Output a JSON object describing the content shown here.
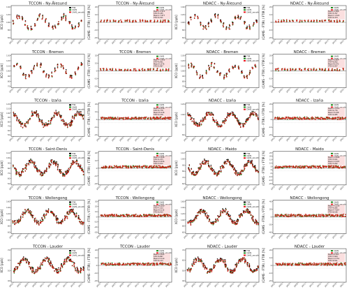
{
  "figure": {
    "rows": [
      {
        "site": "Ny-Ålesund",
        "panels": [
          {
            "title": "TCCON - Ny-Ålesund",
            "ylabel": "XCO [ppb]",
            "kind": "abs",
            "ylim": [
              40,
              150
            ],
            "yticks": [
              "60",
              "80",
              "100",
              "120",
              "140"
            ],
            "legend": [
              "FTIR",
              "CAMS",
              "CAMS_smooth"
            ],
            "stats": []
          },
          {
            "title": "TCCON - Ny-Ålesund",
            "ylabel": "(CAMS - FTIR) / FTIR [%]",
            "kind": "rel",
            "ylim": [
              -25,
              25
            ],
            "yticks": [
              "-20",
              "-10",
              "0",
              "10",
              "20"
            ],
            "legend": [
              "CAMS",
              "CAMS_smooth"
            ],
            "stats": [
              "Mean=-2.413",
              "STD=5.435",
              "Mean=-7.877",
              "STD=4.911"
            ]
          },
          {
            "title": "NDACC - Ny-Ålesund",
            "ylabel": "XCO [ppb]",
            "kind": "abs",
            "ylim": [
              40,
              150
            ],
            "yticks": [
              "60",
              "80",
              "100",
              "120",
              "140"
            ],
            "legend": [
              "FTIR",
              "CAMS",
              "CAMS_smooth"
            ],
            "stats": []
          },
          {
            "title": "NDACC - Ny-Ålesund",
            "ylabel": "(CAMS - FTIR) / FTIR [%]",
            "kind": "rel",
            "ylim": [
              -25,
              25
            ],
            "yticks": [
              "-20",
              "-10",
              "0",
              "10",
              "20"
            ],
            "legend": [
              "CAMS",
              "CAMS_smooth"
            ],
            "stats": [
              "Mean=1.986",
              "STD=5.767",
              "Mean=-1.320",
              "STD=4.474"
            ]
          }
        ]
      },
      {
        "site": "Bremen",
        "panels": [
          {
            "title": "TCCON - Bremen",
            "ylabel": "XCO [ppb]",
            "kind": "abs",
            "ylim": [
              60,
              140
            ],
            "yticks": [
              "70",
              "80",
              "90",
              "100",
              "110",
              "120",
              "130"
            ],
            "legend": [],
            "stats": []
          },
          {
            "title": "TCCON - Bremen",
            "ylabel": "(CAMS - FTIR) / FTIR [%]",
            "kind": "rel",
            "ylim": [
              -25,
              25
            ],
            "yticks": [
              "-20",
              "-10",
              "0",
              "10",
              "20"
            ],
            "legend": [
              "CAMS",
              "CAMS_smooth"
            ],
            "stats": [
              "Mean=-1.403",
              "STD=6.951",
              "Mean=1.576",
              "STD=5.967"
            ]
          },
          {
            "title": "NDACC - Bremen",
            "ylabel": "XCO [ppb]",
            "kind": "abs",
            "ylim": [
              60,
              140
            ],
            "yticks": [
              "70",
              "80",
              "90",
              "100",
              "110",
              "120",
              "130"
            ],
            "legend": [
              "FTIR",
              "CAMS",
              "CAMS_smooth"
            ],
            "stats": []
          },
          {
            "title": "NDACC - Bremen",
            "ylabel": "(CAMS - FTIR) / FTIR [%]",
            "kind": "rel",
            "ylim": [
              -25,
              25
            ],
            "yticks": [
              "-20",
              "-10",
              "0",
              "10",
              "20"
            ],
            "legend": [
              "CAMS",
              "CAMS_smooth"
            ],
            "stats": [
              "Mean=2.604",
              "STD=6.052",
              "Mean=5.073",
              "STD=5.057"
            ]
          }
        ]
      },
      {
        "site": "Izaña",
        "panels": [
          {
            "title": "TCCON - Izaña",
            "ylabel": "XCO [ppb]",
            "kind": "abs",
            "ylim": [
              40,
              130
            ],
            "yticks": [
              "50",
              "60",
              "70",
              "80",
              "90",
              "100",
              "110",
              "120"
            ],
            "legend": [
              "FTIR",
              "CAMS",
              "CAMS_smooth"
            ],
            "stats": []
          },
          {
            "title": "TCCON - Izaña",
            "ylabel": "(CAMS - FTIR) / FTIR [%]",
            "kind": "rel",
            "ylim": [
              -30,
              30
            ],
            "yticks": [
              "-20",
              "-10",
              "0",
              "10",
              "20"
            ],
            "legend": [
              "CAMS",
              "CAMS_smooth"
            ],
            "stats": [
              "Mean=0.355",
              "STD=4.778",
              "Mean=0.228",
              "STD=2.218"
            ]
          },
          {
            "title": "NDACC - Izaña",
            "ylabel": "XCO [ppb]",
            "kind": "abs",
            "ylim": [
              40,
              130
            ],
            "yticks": [
              "60",
              "80",
              "100",
              "120"
            ],
            "legend": [
              "FTIR",
              "CAMS",
              "CAMS_smooth"
            ],
            "stats": []
          },
          {
            "title": "NDACC - Izaña",
            "ylabel": "(CAMS - FTIR) / FTIR [%]",
            "kind": "rel",
            "ylim": [
              -30,
              30
            ],
            "yticks": [
              "-20",
              "-10",
              "0",
              "10",
              "20"
            ],
            "legend": [
              "CAMS",
              "CAMS_smooth"
            ],
            "stats": [
              "Mean=-1.114",
              "STD=4.776",
              "Mean=3.448",
              "STD=4.085"
            ]
          }
        ]
      },
      {
        "site": "Saint-Denis / Maido",
        "panels": [
          {
            "title": "TCCON - Saint-Denis",
            "ylabel": "XCO [ppb]",
            "kind": "abs",
            "ylim": [
              40,
              110
            ],
            "yticks": [
              "50",
              "60",
              "70",
              "80",
              "90",
              "100",
              "110"
            ],
            "legend": [
              "FTIR",
              "CAMS",
              "CAMS_smooth"
            ],
            "stats": []
          },
          {
            "title": "TCCON - Saint-Denis",
            "ylabel": "(CAMS - FTIR) / FTIR [%]",
            "kind": "rel",
            "ylim": [
              -25,
              25
            ],
            "yticks": [
              "-20",
              "-10",
              "0",
              "10",
              "20"
            ],
            "legend": [
              "CAMS",
              "CAMS_smooth"
            ],
            "stats": [
              "Mean=2.996",
              "STD=4.473",
              "Mean=4.656",
              "STD=3.672"
            ]
          },
          {
            "title": "NDACC - Maido",
            "ylabel": "XCO [ppb]",
            "kind": "abs",
            "ylim": [
              40,
              110
            ],
            "yticks": [
              "60",
              "70",
              "80",
              "90",
              "100",
              "110"
            ],
            "legend": [
              "FTIR",
              "CAMS",
              "CAMS_smooth"
            ],
            "stats": []
          },
          {
            "title": "NDACC - Maido",
            "ylabel": "(CAMS - FTIR) / FTIR [%]",
            "kind": "rel",
            "ylim": [
              -25,
              25
            ],
            "yticks": [
              "-20",
              "-15",
              "-10",
              "-5",
              "0",
              "5",
              "10",
              "15",
              "20",
              "25"
            ],
            "legend": [
              "CAMS",
              "CAMS_smooth"
            ],
            "stats": [
              "Mean=-0.808",
              "STD=3.911",
              "Mean=-0.203",
              "STD=3.262"
            ]
          }
        ]
      },
      {
        "site": "Wollongong",
        "panels": [
          {
            "title": "TCCON - Wollongong",
            "ylabel": "XCO [ppb]",
            "kind": "abs",
            "ylim": [
              40,
              160
            ],
            "yticks": [
              "60",
              "80",
              "100",
              "120",
              "140",
              "160"
            ],
            "legend": [
              "FTIR",
              "CAMS",
              "CAMS_smooth"
            ],
            "stats": []
          },
          {
            "title": "TCCON - Wollongong",
            "ylabel": "(CAMS - FTIR) / FTIR [%]",
            "kind": "rel",
            "ylim": [
              -40,
              40
            ],
            "yticks": [
              "-30",
              "-20",
              "-10",
              "0",
              "10",
              "20",
              "30"
            ],
            "legend": [
              "CAMS",
              "CAMS_smooth"
            ],
            "stats": [
              "Mean=0.000",
              "STD=7.213",
              "Mean=2.115",
              "STD=6.012"
            ]
          },
          {
            "title": "NDACC - Wollongong",
            "ylabel": "XCO [ppb]",
            "kind": "abs",
            "ylim": [
              40,
              160
            ],
            "yticks": [
              "60",
              "80",
              "100",
              "120",
              "140",
              "160"
            ],
            "legend": [
              "FTIR",
              "CAMS",
              "CAMS_smooth"
            ],
            "stats": []
          },
          {
            "title": "NDACC - Wollongong",
            "ylabel": "(CAMS - FTIR) / FTIR [%]",
            "kind": "rel",
            "ylim": [
              -40,
              40
            ],
            "yticks": [
              "-40",
              "-20",
              "0",
              "20",
              "40"
            ],
            "legend": [
              "CAMS",
              "CAMS_smooth"
            ],
            "stats": [
              "Mean=-5.330",
              "STD=9.285",
              "Mean=-7.667",
              "STD=8.196"
            ]
          }
        ]
      },
      {
        "site": "Lauder",
        "panels": [
          {
            "title": "TCCON - Lauder",
            "ylabel": "XCO [ppb]",
            "kind": "abs",
            "ylim": [
              30,
              80
            ],
            "yticks": [
              "40",
              "50",
              "60",
              "70"
            ],
            "legend": [
              "FTIR",
              "CAMS",
              "CAMS_smooth"
            ],
            "stats": []
          },
          {
            "title": "TCCON - Lauder",
            "ylabel": "(CAMS - FTIR) / FTIR [%]",
            "kind": "rel",
            "ylim": [
              -30,
              30
            ],
            "yticks": [
              "-20",
              "-10",
              "0",
              "10",
              "20"
            ],
            "legend": [
              "CAMS",
              "CAMS_smooth"
            ],
            "stats": [
              "Mean=3.005",
              "STD=6.867",
              "Mean=3.120",
              "STD=4.123"
            ]
          },
          {
            "title": "NDACC - Lauder",
            "ylabel": "XCO [ppb]",
            "kind": "abs",
            "ylim": [
              30,
              80
            ],
            "yticks": [
              "40",
              "50",
              "60",
              "70"
            ],
            "legend": [
              "FTIR",
              "CAMS",
              "CAMS_smooth"
            ],
            "stats": []
          },
          {
            "title": "NDACC - Lauder",
            "ylabel": "(CAMS - FTIR) / FTIR [%]",
            "kind": "rel",
            "ylim": [
              -30,
              30
            ],
            "yticks": [
              "-20",
              "-10",
              "0",
              "10",
              "20"
            ],
            "legend": [
              "CAMS",
              "CAMS_smooth"
            ],
            "stats": [
              "Mean=0.261",
              "STD=7.664",
              "Mean=-0.751",
              "STD=6.551"
            ]
          }
        ]
      }
    ],
    "colors": {
      "FTIR": "#000000",
      "CAMS": "#1a8a1a",
      "CAMS_smooth": "#e8141a",
      "stats_box": "#f6c0c0",
      "zero_line": "#7a7a7a"
    }
  },
  "chart_data": {
    "type": "scatter",
    "xlabel": "",
    "x": [
      "2003",
      "2005",
      "2007",
      "2009",
      "2011",
      "2013",
      "2015",
      "2017",
      "2019",
      "2021"
    ],
    "series": [
      {
        "name": "FTIR",
        "description_values": "time series of XCO [ppb]"
      },
      {
        "name": "CAMS",
        "description_values": "time series of XCO [ppb]"
      },
      {
        "name": "CAMS_smooth",
        "description_values": "time series of XCO [ppb]"
      }
    ],
    "relative_difference_stats": [
      {
        "panel": "TCCON - Ny-Ålesund",
        "CAMS_mean": -2.413,
        "CAMS_std": 5.435,
        "CAMS_smooth_mean": -7.877,
        "CAMS_smooth_std": 4.911
      },
      {
        "panel": "NDACC - Ny-Ålesund",
        "CAMS_mean": 1.986,
        "CAMS_std": 5.767,
        "CAMS_smooth_mean": -1.32,
        "CAMS_smooth_std": 4.474
      },
      {
        "panel": "TCCON - Bremen",
        "CAMS_mean": -1.403,
        "CAMS_std": 6.951,
        "CAMS_smooth_mean": 1.576,
        "CAMS_smooth_std": 5.967
      },
      {
        "panel": "NDACC - Bremen",
        "CAMS_mean": 2.604,
        "CAMS_std": 6.052,
        "CAMS_smooth_mean": 5.073,
        "CAMS_smooth_std": 5.057
      },
      {
        "panel": "TCCON - Izaña",
        "CAMS_mean": 0.355,
        "CAMS_std": 4.778,
        "CAMS_smooth_mean": 0.228,
        "CAMS_smooth_std": 2.218
      },
      {
        "panel": "NDACC - Izaña",
        "CAMS_mean": -1.114,
        "CAMS_std": 4.776,
        "CAMS_smooth_mean": 3.448,
        "CAMS_smooth_std": 4.085
      },
      {
        "panel": "TCCON - Saint-Denis",
        "CAMS_mean": 2.996,
        "CAMS_std": 4.473,
        "CAMS_smooth_mean": 4.656,
        "CAMS_smooth_std": 3.672
      },
      {
        "panel": "NDACC - Maido",
        "CAMS_mean": -0.808,
        "CAMS_std": 3.911,
        "CAMS_smooth_mean": -0.203,
        "CAMS_smooth_std": 3.262
      },
      {
        "panel": "TCCON - Wollongong",
        "CAMS_mean": 0.0,
        "CAMS_std": 7.213,
        "CAMS_smooth_mean": 2.115,
        "CAMS_smooth_std": 6.012
      },
      {
        "panel": "NDACC - Wollongong",
        "CAMS_mean": -5.33,
        "CAMS_std": 9.285,
        "CAMS_smooth_mean": -7.667,
        "CAMS_smooth_std": 8.196
      },
      {
        "panel": "TCCON - Lauder",
        "CAMS_mean": 3.005,
        "CAMS_std": 6.867,
        "CAMS_smooth_mean": 3.12,
        "CAMS_smooth_std": 4.123
      },
      {
        "panel": "NDACC - Lauder",
        "CAMS_mean": 0.261,
        "CAMS_std": 7.664,
        "CAMS_smooth_mean": -0.751,
        "CAMS_smooth_std": 6.551
      }
    ],
    "grid": false,
    "legend": "top-right"
  }
}
